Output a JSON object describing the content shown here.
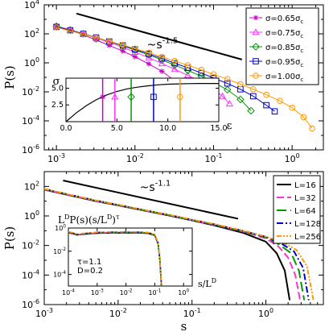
{
  "chart_data": [
    {
      "type": "line",
      "panel": "top",
      "xscale": "log",
      "yscale": "log",
      "xlim": [
        0.0007,
        2.5
      ],
      "ylim": [
        1e-06,
        10000.0
      ],
      "xlabel": "",
      "ylabel": "P(s)",
      "xticks": [
        0.001,
        0.01,
        0.1,
        1
      ],
      "xtick_labels": [
        "10",
        "10",
        "10",
        "10"
      ],
      "xtick_exps": [
        "-3",
        "-2",
        "-1",
        "0"
      ],
      "yticks": [
        1e-06,
        0.0001,
        0.01,
        1,
        100,
        10000
      ],
      "ytick_labels": [
        "10",
        "10",
        "10",
        "10",
        "10",
        "10"
      ],
      "ytick_exps": [
        "-6",
        "-4",
        "-2",
        "0",
        "2",
        "4"
      ],
      "annotation": {
        "base": "~s",
        "exp": "-1.5"
      },
      "guide_line": {
        "x": [
          0.0018,
          0.23
        ],
        "y": [
          2500,
          1.7
        ]
      },
      "legend_position": "top-right",
      "series": [
        {
          "name": "σ=0.65σ",
          "name_sub": "c",
          "color": "#cc00cc",
          "marker": "asterisk",
          "x": [
            0.001,
            0.0015,
            0.0022,
            0.0032,
            0.0047,
            0.007,
            0.01,
            0.015,
            0.022,
            0.032,
            0.045,
            0.06
          ],
          "y": [
            350,
            180,
            85,
            38,
            16,
            6.5,
            2.6,
            0.85,
            0.26,
            0.06,
            0.012,
            0.002
          ]
        },
        {
          "name": "σ=0.75σ",
          "name_sub": "c",
          "color": "#ff33ff",
          "marker": "triangle",
          "x": [
            0.001,
            0.0015,
            0.0022,
            0.0032,
            0.0047,
            0.007,
            0.01,
            0.015,
            0.022,
            0.032,
            0.047,
            0.07,
            0.1,
            0.13,
            0.16
          ],
          "y": [
            350,
            190,
            100,
            52,
            26,
            12,
            5.5,
            2.3,
            0.9,
            0.36,
            0.14,
            0.05,
            0.016,
            0.005,
            0.0015
          ]
        },
        {
          "name": "σ=0.85σ",
          "name_sub": "c",
          "color": "#009900",
          "marker": "diamond",
          "x": [
            0.001,
            0.0015,
            0.0022,
            0.0032,
            0.0047,
            0.007,
            0.01,
            0.015,
            0.022,
            0.032,
            0.047,
            0.07,
            0.1,
            0.15,
            0.22,
            0.3
          ],
          "y": [
            320,
            180,
            100,
            55,
            29,
            15,
            7.5,
            3.5,
            1.6,
            0.7,
            0.3,
            0.12,
            0.045,
            0.014,
            0.003,
            0.0005
          ]
        },
        {
          "name": "σ=0.95σ",
          "name_sub": "c",
          "color": "#0000cc",
          "marker": "square",
          "x": [
            0.001,
            0.0015,
            0.0022,
            0.0032,
            0.0047,
            0.007,
            0.01,
            0.015,
            0.022,
            0.032,
            0.047,
            0.07,
            0.1,
            0.15,
            0.22,
            0.32,
            0.47,
            0.6
          ],
          "y": [
            300,
            175,
            100,
            56,
            30,
            16,
            8.5,
            4.2,
            2.0,
            0.95,
            0.45,
            0.2,
            0.09,
            0.038,
            0.015,
            0.005,
            0.0012,
            0.00045
          ]
        },
        {
          "name": "σ=1.00σ",
          "name_sub": "c",
          "color": "#ff9900",
          "marker": "circle",
          "x": [
            0.001,
            0.0015,
            0.0022,
            0.0032,
            0.0047,
            0.007,
            0.01,
            0.015,
            0.022,
            0.032,
            0.047,
            0.07,
            0.1,
            0.15,
            0.22,
            0.32,
            0.47,
            0.7,
            1.0,
            1.4,
            1.8
          ],
          "y": [
            280,
            160,
            95,
            55,
            31,
            17,
            9.5,
            5.0,
            2.6,
            1.35,
            0.68,
            0.33,
            0.16,
            0.075,
            0.034,
            0.015,
            0.0062,
            0.0024,
            0.0008,
            0.00018,
            3e-05
          ]
        }
      ],
      "inset": {
        "xlim": [
          0,
          15
        ],
        "ylim": [
          0,
          6.5
        ],
        "xticks": [
          0,
          5,
          10,
          15
        ],
        "xtick_labels": [
          "0.0",
          "5.0",
          "10.0",
          "15.0"
        ],
        "yticks": [
          2.5,
          5
        ],
        "ytick_labels": [
          "2.5",
          "5.0"
        ],
        "xlabel": "ε",
        "ylabel": "σ",
        "curve": {
          "x": [
            0,
            1,
            2,
            3,
            4,
            5,
            6,
            7,
            8,
            9,
            10,
            11,
            12,
            13,
            14,
            15
          ],
          "y": [
            0,
            1.3,
            2.4,
            3.3,
            4.0,
            4.5,
            4.9,
            5.15,
            5.35,
            5.5,
            5.6,
            5.65,
            5.68,
            5.7,
            5.7,
            5.7
          ]
        },
        "markers": [
          {
            "x": 3.6,
            "y": 3.7,
            "color": "#cc00cc",
            "marker": "asterisk"
          },
          {
            "x": 4.8,
            "y": 3.7,
            "color": "#ff33ff",
            "marker": "triangle"
          },
          {
            "x": 6.4,
            "y": 3.7,
            "color": "#009900",
            "marker": "diamond"
          },
          {
            "x": 8.6,
            "y": 3.7,
            "color": "#0000cc",
            "marker": "square"
          },
          {
            "x": 11.2,
            "y": 3.7,
            "color": "#ff9900",
            "marker": "circle"
          }
        ]
      }
    },
    {
      "type": "line",
      "panel": "bottom",
      "xscale": "log",
      "yscale": "log",
      "xlim": [
        0.001,
        6
      ],
      "ylim": [
        1e-06,
        1000.0
      ],
      "xlabel": "s",
      "ylabel": "P(s)",
      "xticks": [
        0.001,
        0.01,
        0.1,
        1
      ],
      "xtick_labels": [
        "10",
        "10",
        "10",
        "10"
      ],
      "xtick_exps": [
        "-3",
        "-2",
        "-1",
        "0"
      ],
      "yticks": [
        1e-06,
        0.0001,
        0.01,
        1,
        100
      ],
      "ytick_labels": [
        "10",
        "10",
        "10",
        "10",
        "10"
      ],
      "ytick_exps": [
        "-6",
        "-4",
        "-2",
        "0",
        "2"
      ],
      "annotation": {
        "base": "~s",
        "exp": "-1.1"
      },
      "guide_line": {
        "x": [
          0.0018,
          0.42
        ],
        "y": [
          250,
          0.65
        ]
      },
      "legend_position": "top-right",
      "series": [
        {
          "name": "L=16",
          "color": "#000000",
          "dash": "",
          "x": [
            0.001,
            0.002,
            0.005,
            0.01,
            0.02,
            0.05,
            0.1,
            0.2,
            0.5,
            1.0,
            1.4,
            1.8,
            2.1
          ],
          "y": [
            60,
            28,
            10,
            5.2,
            2.6,
            1.05,
            0.5,
            0.23,
            0.07,
            0.018,
            0.003,
            0.0002,
            2e-06
          ]
        },
        {
          "name": "L=32",
          "color": "#ff33cc",
          "dash": "9,4",
          "x": [
            0.001,
            0.002,
            0.005,
            0.01,
            0.02,
            0.05,
            0.1,
            0.2,
            0.5,
            1.0,
            1.5,
            2.0,
            2.5,
            2.9
          ],
          "y": [
            62,
            29,
            10.5,
            5.4,
            2.7,
            1.1,
            0.52,
            0.25,
            0.085,
            0.03,
            0.008,
            0.0015,
            0.0001,
            2e-06
          ]
        },
        {
          "name": "L=64",
          "color": "#009900",
          "dash": "12,5",
          "x": [
            0.001,
            0.002,
            0.005,
            0.01,
            0.02,
            0.05,
            0.1,
            0.2,
            0.5,
            1.0,
            1.5,
            2.2,
            2.8,
            3.3
          ],
          "y": [
            64,
            30,
            11,
            5.5,
            2.75,
            1.12,
            0.54,
            0.26,
            0.09,
            0.035,
            0.012,
            0.003,
            0.0002,
            2e-06
          ]
        },
        {
          "name": "L=128",
          "color": "#0000cc",
          "dash": "8,3,2,3",
          "x": [
            0.001,
            0.002,
            0.005,
            0.01,
            0.02,
            0.05,
            0.1,
            0.2,
            0.5,
            1.0,
            1.6,
            2.4,
            3.2,
            3.8
          ],
          "y": [
            66,
            30,
            11,
            5.6,
            2.8,
            1.14,
            0.55,
            0.27,
            0.095,
            0.038,
            0.014,
            0.004,
            0.0003,
            2e-06
          ]
        },
        {
          "name": "L=256",
          "color": "#ff9900",
          "dash": "6,2,2,2,2,2",
          "x": [
            0.001,
            0.002,
            0.005,
            0.01,
            0.02,
            0.05,
            0.1,
            0.2,
            0.5,
            1.0,
            1.7,
            2.6,
            3.6,
            4.4
          ],
          "y": [
            68,
            31,
            11,
            5.7,
            2.85,
            1.16,
            0.56,
            0.28,
            0.1,
            0.04,
            0.016,
            0.005,
            0.0004,
            2e-06
          ]
        }
      ],
      "inset": {
        "xscale": "log",
        "yscale": "log",
        "xlim": [
          0.0001,
          2
        ],
        "ylim": [
          1e-05,
          1
        ],
        "xticks": [
          0.0001,
          0.001,
          0.01,
          0.1,
          1
        ],
        "xtick_labels": [
          "10",
          "10",
          "10",
          "10",
          "10"
        ],
        "xtick_exps": [
          "-4",
          "-3",
          "-2",
          "-1",
          "0"
        ],
        "yticks": [
          0.0001,
          0.01,
          1
        ],
        "ytick_labels": [
          "10",
          "10",
          "10"
        ],
        "ytick_exps": [
          "-4",
          "-2",
          "0"
        ],
        "ylabel": {
          "t1": "L",
          "s1": "D",
          "t2": "P(s)(s/L",
          "s2": "D",
          "t3": ")",
          "s3": "τ"
        },
        "xlabel": {
          "t1": "s/L",
          "s1": "D"
        },
        "notes": [
          "τ=1.1",
          "D=0.2"
        ],
        "x": [
          0.0001,
          0.0002,
          0.0005,
          0.001,
          0.003,
          0.01,
          0.03,
          0.06,
          0.1,
          0.13,
          0.15,
          0.17
        ],
        "y": [
          0.45,
          0.28,
          0.35,
          0.4,
          0.42,
          0.43,
          0.42,
          0.38,
          0.25,
          0.05,
          0.002,
          1e-05
        ]
      }
    }
  ]
}
